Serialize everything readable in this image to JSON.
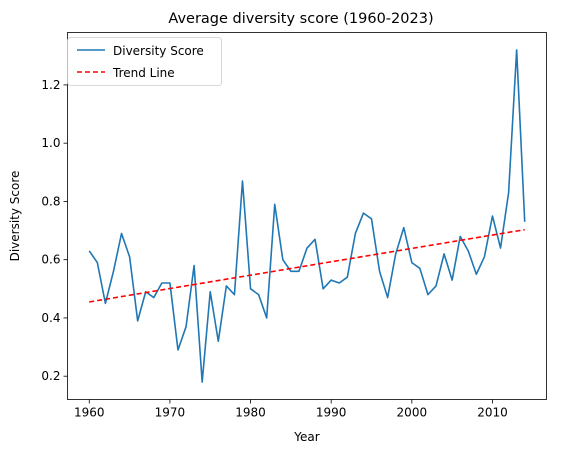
{
  "chart_data": {
    "type": "line",
    "title": "Average diversity score (1960-2023)",
    "xlabel": "Year",
    "ylabel": "Diversity Score",
    "xlim": [
      1957.3,
      2016.7
    ],
    "ylim": [
      0.12,
      1.38
    ],
    "xticks": [
      1960,
      1970,
      1980,
      1990,
      2000,
      2010
    ],
    "yticks": [
      0.2,
      0.4,
      0.6,
      0.8,
      1.0,
      1.2
    ],
    "xtick_labels": [
      "1960",
      "1970",
      "1980",
      "1990",
      "2000",
      "2010"
    ],
    "ytick_labels": [
      "0.2",
      "0.4",
      "0.6",
      "0.8",
      "1.0",
      "1.2"
    ],
    "grid": false,
    "legend_position": "top-left",
    "x": [
      1960,
      1961,
      1962,
      1963,
      1964,
      1965,
      1966,
      1967,
      1968,
      1969,
      1970,
      1971,
      1972,
      1973,
      1974,
      1975,
      1976,
      1977,
      1978,
      1979,
      1980,
      1981,
      1982,
      1983,
      1984,
      1985,
      1986,
      1987,
      1988,
      1989,
      1990,
      1991,
      1992,
      1993,
      1994,
      1995,
      1996,
      1997,
      1998,
      1999,
      2000,
      2001,
      2002,
      2003,
      2004,
      2005,
      2006,
      2007,
      2008,
      2009,
      2010,
      2011,
      2012,
      2013,
      2014
    ],
    "series": [
      {
        "name": "Diversity Score",
        "color": "#1f77b4",
        "style": "solid",
        "values": [
          0.63,
          0.59,
          0.45,
          0.56,
          0.69,
          0.61,
          0.39,
          0.49,
          0.47,
          0.52,
          0.52,
          0.29,
          0.37,
          0.58,
          0.18,
          0.49,
          0.32,
          0.51,
          0.48,
          0.87,
          0.5,
          0.48,
          0.4,
          0.79,
          0.6,
          0.56,
          0.56,
          0.64,
          0.67,
          0.5,
          0.53,
          0.52,
          0.54,
          0.69,
          0.76,
          0.74,
          0.56,
          0.47,
          0.62,
          0.71,
          0.59,
          0.57,
          0.48,
          0.51,
          0.62,
          0.53,
          0.68,
          0.63,
          0.55,
          0.61,
          0.75,
          0.64,
          0.83,
          1.32,
          0.73
        ]
      },
      {
        "name": "Trend Line",
        "color": "#ff0000",
        "style": "dashed",
        "x": [
          1960,
          2014
        ],
        "values": [
          0.455,
          0.703
        ]
      }
    ]
  }
}
